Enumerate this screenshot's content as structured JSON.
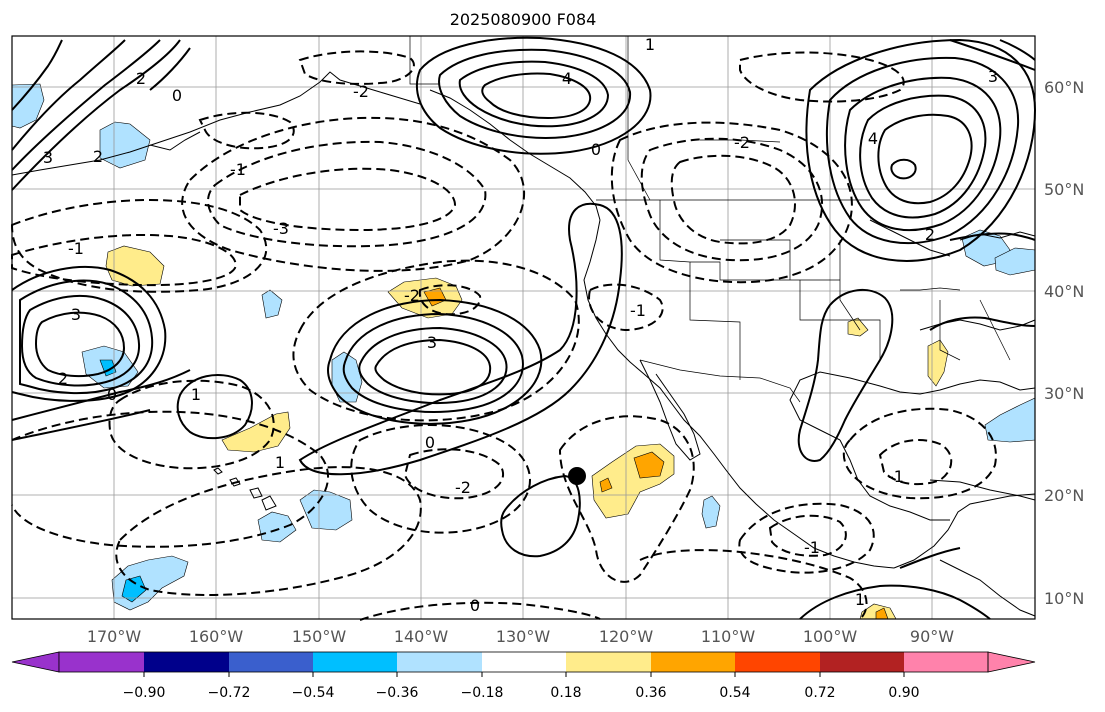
{
  "title": "2025080900 F084",
  "lat_labels": [
    "60°N",
    "50°N",
    "40°N",
    "30°N",
    "20°N",
    "10°N"
  ],
  "lon_labels": [
    "170°W",
    "160°W",
    "150°W",
    "140°W",
    "130°W",
    "120°W",
    "110°W",
    "100°W",
    "90°W"
  ],
  "colorbar": {
    "ticks": [
      "−0.90",
      "−0.72",
      "−0.54",
      "−0.36",
      "−0.18",
      "0.18",
      "0.36",
      "0.54",
      "0.72",
      "0.90"
    ],
    "colors": [
      "#9932cc",
      "#00008b",
      "#3a5fcd",
      "#00bfff",
      "#b0e2ff",
      "#ffffff",
      "#ffec8b",
      "#ffa500",
      "#ff4500",
      "#b22222",
      "#ff82ab"
    ]
  },
  "contour_labels": [
    "2",
    "3",
    "0",
    "-2",
    "-1",
    "4",
    "1",
    "-3",
    "-1",
    "3",
    "2",
    "0",
    "1",
    "-2",
    "-2",
    "0",
    "-1",
    "1",
    "0",
    "4",
    "2",
    "3",
    "-2",
    "0",
    "-1",
    "2",
    "1",
    "3",
    "-1"
  ],
  "map_colors": {
    "positive_contour": "#000000",
    "negative_contour": "#000000",
    "shade_blue_light": "#b0e2ff",
    "shade_blue": "#00bfff",
    "shade_yellow": "#ffec8b",
    "shade_orange": "#ffa500",
    "shade_red": "#ff4500"
  }
}
